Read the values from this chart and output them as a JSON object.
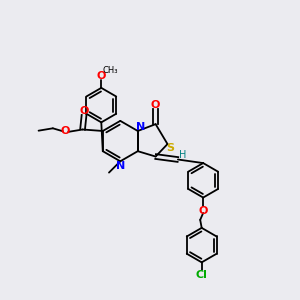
{
  "bg_color": "#ebebf0",
  "atom_colors": {
    "N": "#0000ff",
    "O": "#ff0000",
    "S": "#ccaa00",
    "Cl": "#00aa00",
    "C": "#000000",
    "H": "#008080"
  },
  "lw": 1.3,
  "ring_r": 0.058,
  "fig_w": 3.0,
  "fig_h": 3.0
}
